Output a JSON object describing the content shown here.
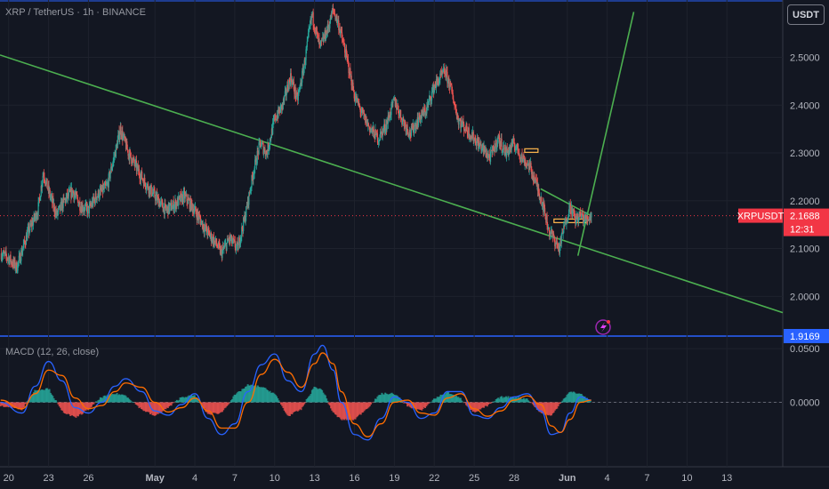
{
  "header": {
    "symbol_info": "XRP / TetherUS · 1h · BINANCE",
    "currency_button": "USDT"
  },
  "macd": {
    "title": "MACD (12, 26, close)"
  },
  "colors": {
    "background": "#131722",
    "up": "#26a69a",
    "down": "#ef5350",
    "trendline": "#4caf50",
    "macd_line": "#2962ff",
    "signal_line": "#ff6d00",
    "hist_up": "#26a69a",
    "hist_down": "#ef5350",
    "price_label": "#f23645",
    "crosshair_label": "#2962ff"
  },
  "icons": {
    "alert": "lightning-alert-icon"
  },
  "chart_data": [
    {
      "type": "candlestick",
      "title": "XRP / TetherUS · 1h · BINANCE",
      "xlabel": "",
      "ylabel": "",
      "ylim": [
        1.9169,
        2.62
      ],
      "y_ticks": [
        "2.5000",
        "2.4000",
        "2.3000",
        "2.2000",
        "2.1000",
        "2.0000"
      ],
      "x_tick_labels": [
        "20",
        "23",
        "26",
        "May",
        "4",
        "7",
        "10",
        "13",
        "16",
        "19",
        "22",
        "25",
        "28",
        "Jun",
        "4",
        "7",
        "10",
        "13"
      ],
      "x_ticks_day": [
        20,
        23,
        26,
        31,
        34,
        37,
        40,
        43,
        46,
        49,
        52,
        55,
        58,
        62,
        65,
        68,
        71,
        74
      ],
      "x_range_day": [
        19.35,
        78.2
      ],
      "current_price": {
        "symbol": "XRPUSDT",
        "value": "2.1688",
        "countdown": "12:31"
      },
      "crosshair_price": "1.9169",
      "price_path": [
        [
          19.4,
          2.09
        ],
        [
          20.0,
          2.08
        ],
        [
          20.6,
          2.06
        ],
        [
          21.4,
          2.13
        ],
        [
          22.2,
          2.18
        ],
        [
          22.6,
          2.26
        ],
        [
          23.0,
          2.22
        ],
        [
          23.6,
          2.17
        ],
        [
          24.2,
          2.2
        ],
        [
          24.8,
          2.22
        ],
        [
          25.4,
          2.19
        ],
        [
          26.0,
          2.18
        ],
        [
          26.6,
          2.21
        ],
        [
          27.4,
          2.23
        ],
        [
          28.0,
          2.3
        ],
        [
          28.4,
          2.35
        ],
        [
          29.0,
          2.3
        ],
        [
          29.6,
          2.27
        ],
        [
          30.2,
          2.24
        ],
        [
          31.0,
          2.21
        ],
        [
          31.8,
          2.18
        ],
        [
          32.4,
          2.19
        ],
        [
          33.2,
          2.21
        ],
        [
          34.0,
          2.18
        ],
        [
          34.8,
          2.14
        ],
        [
          35.6,
          2.11
        ],
        [
          36.0,
          2.09
        ],
        [
          36.6,
          2.12
        ],
        [
          37.2,
          2.1
        ],
        [
          37.8,
          2.17
        ],
        [
          38.4,
          2.26
        ],
        [
          38.9,
          2.32
        ],
        [
          39.4,
          2.3
        ],
        [
          40.0,
          2.37
        ],
        [
          40.6,
          2.4
        ],
        [
          41.2,
          2.46
        ],
        [
          41.7,
          2.41
        ],
        [
          42.2,
          2.48
        ],
        [
          42.8,
          2.59
        ],
        [
          43.4,
          2.52
        ],
        [
          44.0,
          2.56
        ],
        [
          44.4,
          2.6
        ],
        [
          44.8,
          2.57
        ],
        [
          45.4,
          2.5
        ],
        [
          46.0,
          2.42
        ],
        [
          46.6,
          2.38
        ],
        [
          47.2,
          2.35
        ],
        [
          47.8,
          2.33
        ],
        [
          48.4,
          2.36
        ],
        [
          49.0,
          2.41
        ],
        [
          49.6,
          2.37
        ],
        [
          50.2,
          2.34
        ],
        [
          50.8,
          2.37
        ],
        [
          51.4,
          2.39
        ],
        [
          52.0,
          2.44
        ],
        [
          52.8,
          2.47
        ],
        [
          53.2,
          2.44
        ],
        [
          53.8,
          2.37
        ],
        [
          54.4,
          2.35
        ],
        [
          55.0,
          2.33
        ],
        [
          55.6,
          2.31
        ],
        [
          56.2,
          2.29
        ],
        [
          56.8,
          2.33
        ],
        [
          57.4,
          2.3
        ],
        [
          58.0,
          2.32
        ],
        [
          58.6,
          2.29
        ],
        [
          59.2,
          2.27
        ],
        [
          59.6,
          2.24
        ],
        [
          60.1,
          2.2
        ],
        [
          60.6,
          2.14
        ],
        [
          61.0,
          2.12
        ],
        [
          61.4,
          2.1
        ],
        [
          61.8,
          2.15
        ],
        [
          62.2,
          2.19
        ],
        [
          62.6,
          2.16
        ],
        [
          63.0,
          2.17
        ],
        [
          63.4,
          2.16
        ],
        [
          63.8,
          2.17
        ]
      ],
      "horizontal_levels": [
        {
          "value": 2.305,
          "from_day": 58.8,
          "to_day": 59.8,
          "color": "#ffb74d"
        },
        {
          "value": 2.158,
          "from_day": 61.0,
          "to_day": 63.5,
          "color": "#ffb74d"
        }
      ],
      "trendlines": [
        {
          "from": [
            19.35,
            2.505
          ],
          "to": [
            78.2,
            1.966
          ],
          "color": "#4caf50"
        },
        {
          "from": [
            60.0,
            2.225
          ],
          "to": [
            63.7,
            2.17
          ],
          "color": "#4caf50"
        },
        {
          "from": [
            62.8,
            2.085
          ],
          "to": [
            67.0,
            2.595
          ],
          "color": "#4caf50"
        }
      ]
    },
    {
      "type": "line",
      "title": "MACD (12, 26, close)",
      "xlabel": "",
      "ylabel": "",
      "ylim": [
        -0.06,
        0.06
      ],
      "y_ticks": [
        "0.0500",
        "0.0000"
      ],
      "series": [
        {
          "name": "MACD",
          "color": "#2962ff",
          "x": [
            19.4,
            21.0,
            22.0,
            23.0,
            24.0,
            25.0,
            26.0,
            27.0,
            28.0,
            28.8,
            30.0,
            31.0,
            32.0,
            33.0,
            34.0,
            35.0,
            36.0,
            37.0,
            38.0,
            39.0,
            40.0,
            41.0,
            42.0,
            43.0,
            43.6,
            44.4,
            45.0,
            46.0,
            47.0,
            48.0,
            49.0,
            50.0,
            51.0,
            52.0,
            53.0,
            54.0,
            55.0,
            56.0,
            57.0,
            58.0,
            59.0,
            60.0,
            60.8,
            61.5,
            62.2,
            63.0,
            63.8
          ],
          "values": [
            0.0,
            -0.01,
            0.015,
            0.038,
            0.02,
            -0.005,
            -0.01,
            0.0,
            0.015,
            0.022,
            0.01,
            -0.008,
            -0.012,
            -0.002,
            0.008,
            -0.015,
            -0.03,
            -0.02,
            0.01,
            0.035,
            0.045,
            0.02,
            0.01,
            0.045,
            0.053,
            0.03,
            0.0,
            -0.03,
            -0.035,
            -0.015,
            0.005,
            0.0,
            -0.015,
            -0.01,
            0.01,
            0.01,
            -0.012,
            -0.015,
            -0.005,
            0.005,
            0.008,
            -0.008,
            -0.03,
            -0.028,
            -0.01,
            0.005,
            0.002
          ]
        },
        {
          "name": "Signal",
          "color": "#ff6d00",
          "x": [
            19.4,
            21.0,
            22.0,
            23.0,
            24.0,
            25.0,
            26.0,
            27.0,
            28.0,
            28.8,
            30.0,
            31.0,
            32.0,
            33.0,
            34.0,
            35.0,
            36.0,
            37.0,
            38.0,
            39.0,
            40.0,
            41.0,
            42.0,
            43.0,
            43.6,
            44.4,
            45.0,
            46.0,
            47.0,
            48.0,
            49.0,
            50.0,
            51.0,
            52.0,
            53.0,
            54.0,
            55.0,
            56.0,
            57.0,
            58.0,
            59.0,
            60.0,
            60.8,
            61.5,
            62.2,
            63.0,
            63.8
          ],
          "values": [
            0.002,
            -0.006,
            0.008,
            0.03,
            0.025,
            0.004,
            -0.006,
            -0.003,
            0.01,
            0.018,
            0.014,
            0.0,
            -0.009,
            -0.005,
            0.004,
            -0.008,
            -0.024,
            -0.024,
            0.0,
            0.026,
            0.04,
            0.028,
            0.014,
            0.036,
            0.046,
            0.036,
            0.01,
            -0.02,
            -0.032,
            -0.02,
            0.0,
            0.002,
            -0.01,
            -0.012,
            0.004,
            0.008,
            -0.006,
            -0.013,
            -0.008,
            0.002,
            0.006,
            -0.002,
            -0.022,
            -0.028,
            -0.016,
            0.0,
            0.002
          ]
        }
      ]
    }
  ]
}
